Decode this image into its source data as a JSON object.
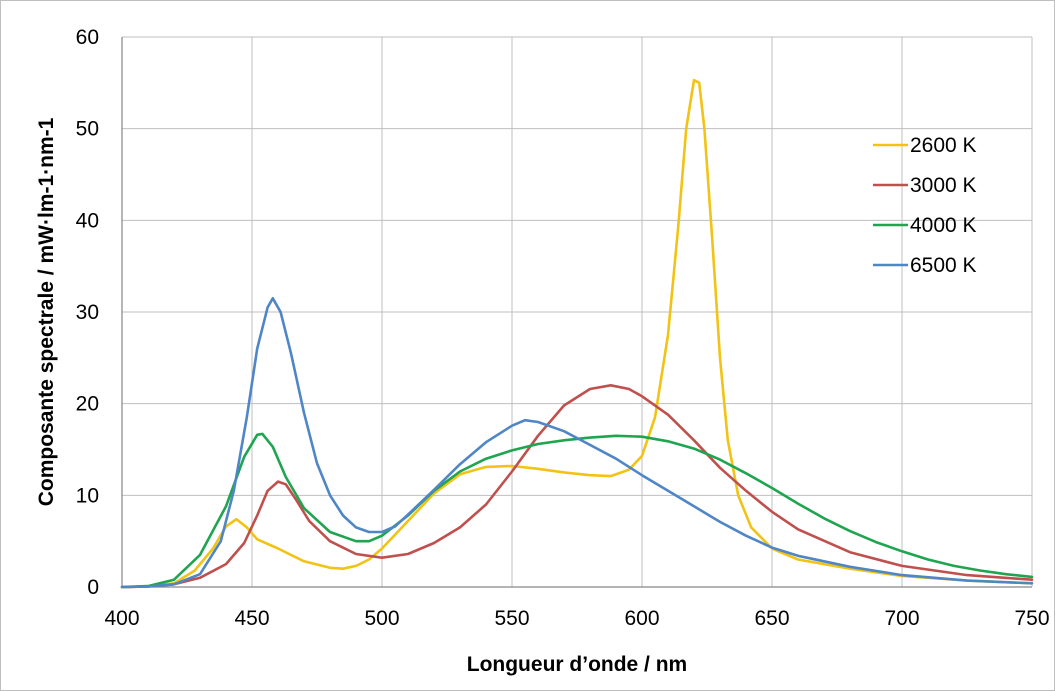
{
  "chart_data": {
    "type": "line",
    "title": "",
    "xlabel": "Longueur d’onde  / nm",
    "ylabel": "Composante spectrale / mW·lm-1·nm-1",
    "xlim": [
      400,
      750
    ],
    "ylim": [
      0,
      60
    ],
    "x_ticks": [
      "400",
      "450",
      "500",
      "550",
      "600",
      "650",
      "700",
      "750"
    ],
    "y_ticks": [
      "0",
      "10",
      "20",
      "30",
      "40",
      "50",
      "60"
    ],
    "grid": true,
    "legend_position": "right",
    "series": [
      {
        "name": "2600 K",
        "color": "#f2c314",
        "points": [
          [
            400,
            0
          ],
          [
            410,
            0.05
          ],
          [
            420,
            0.4
          ],
          [
            428,
            1.8
          ],
          [
            435,
            4.2
          ],
          [
            440,
            6.6
          ],
          [
            444,
            7.4
          ],
          [
            448,
            6.5
          ],
          [
            452,
            5.2
          ],
          [
            460,
            4.2
          ],
          [
            470,
            2.8
          ],
          [
            480,
            2.1
          ],
          [
            485,
            2.0
          ],
          [
            490,
            2.3
          ],
          [
            495,
            3.0
          ],
          [
            500,
            4.2
          ],
          [
            510,
            7.2
          ],
          [
            520,
            10.2
          ],
          [
            530,
            12.3
          ],
          [
            540,
            13.1
          ],
          [
            550,
            13.2
          ],
          [
            560,
            12.9
          ],
          [
            570,
            12.5
          ],
          [
            580,
            12.2
          ],
          [
            588,
            12.1
          ],
          [
            595,
            12.8
          ],
          [
            600,
            14.3
          ],
          [
            605,
            18.5
          ],
          [
            610,
            27.5
          ],
          [
            614,
            39.5
          ],
          [
            617,
            50.0
          ],
          [
            620,
            55.3
          ],
          [
            622,
            55.0
          ],
          [
            624,
            50.0
          ],
          [
            627,
            38.0
          ],
          [
            630,
            25.0
          ],
          [
            633,
            16.0
          ],
          [
            637,
            10.0
          ],
          [
            642,
            6.5
          ],
          [
            650,
            4.2
          ],
          [
            660,
            3.0
          ],
          [
            680,
            2.0
          ],
          [
            700,
            1.2
          ],
          [
            725,
            0.7
          ],
          [
            750,
            0.4
          ]
        ]
      },
      {
        "name": "3000 K",
        "color": "#c0504d",
        "points": [
          [
            400,
            0
          ],
          [
            410,
            0.05
          ],
          [
            420,
            0.3
          ],
          [
            430,
            1.0
          ],
          [
            440,
            2.5
          ],
          [
            447,
            4.8
          ],
          [
            452,
            7.8
          ],
          [
            456,
            10.5
          ],
          [
            460,
            11.5
          ],
          [
            463,
            11.2
          ],
          [
            467,
            9.5
          ],
          [
            472,
            7.2
          ],
          [
            480,
            5.0
          ],
          [
            490,
            3.6
          ],
          [
            500,
            3.2
          ],
          [
            510,
            3.6
          ],
          [
            520,
            4.8
          ],
          [
            530,
            6.5
          ],
          [
            540,
            9.0
          ],
          [
            550,
            12.6
          ],
          [
            560,
            16.5
          ],
          [
            570,
            19.8
          ],
          [
            580,
            21.6
          ],
          [
            588,
            22.0
          ],
          [
            595,
            21.6
          ],
          [
            600,
            20.8
          ],
          [
            610,
            18.8
          ],
          [
            620,
            16.0
          ],
          [
            630,
            13.0
          ],
          [
            640,
            10.5
          ],
          [
            650,
            8.2
          ],
          [
            660,
            6.3
          ],
          [
            680,
            3.8
          ],
          [
            700,
            2.3
          ],
          [
            725,
            1.3
          ],
          [
            750,
            0.8
          ]
        ]
      },
      {
        "name": "4000 K",
        "color": "#1fa550",
        "points": [
          [
            400,
            0
          ],
          [
            410,
            0.1
          ],
          [
            420,
            0.8
          ],
          [
            430,
            3.5
          ],
          [
            440,
            8.8
          ],
          [
            447,
            14.2
          ],
          [
            452,
            16.6
          ],
          [
            454,
            16.7
          ],
          [
            458,
            15.3
          ],
          [
            463,
            12.0
          ],
          [
            470,
            8.6
          ],
          [
            480,
            6.0
          ],
          [
            490,
            5.0
          ],
          [
            495,
            5.0
          ],
          [
            500,
            5.6
          ],
          [
            510,
            7.8
          ],
          [
            520,
            10.5
          ],
          [
            530,
            12.6
          ],
          [
            540,
            14.0
          ],
          [
            550,
            14.9
          ],
          [
            560,
            15.6
          ],
          [
            570,
            16.0
          ],
          [
            580,
            16.3
          ],
          [
            590,
            16.5
          ],
          [
            600,
            16.4
          ],
          [
            610,
            15.9
          ],
          [
            620,
            15.1
          ],
          [
            630,
            13.9
          ],
          [
            640,
            12.4
          ],
          [
            650,
            10.8
          ],
          [
            660,
            9.1
          ],
          [
            670,
            7.5
          ],
          [
            680,
            6.1
          ],
          [
            690,
            4.9
          ],
          [
            700,
            3.9
          ],
          [
            710,
            3.0
          ],
          [
            720,
            2.3
          ],
          [
            730,
            1.8
          ],
          [
            740,
            1.4
          ],
          [
            750,
            1.1
          ]
        ]
      },
      {
        "name": "6500 K",
        "color": "#4f86c6",
        "points": [
          [
            400,
            0
          ],
          [
            410,
            0.05
          ],
          [
            420,
            0.3
          ],
          [
            430,
            1.4
          ],
          [
            438,
            5.0
          ],
          [
            443,
            10.5
          ],
          [
            448,
            18.5
          ],
          [
            452,
            26.0
          ],
          [
            456,
            30.5
          ],
          [
            458,
            31.5
          ],
          [
            461,
            30.0
          ],
          [
            465,
            25.5
          ],
          [
            470,
            19.0
          ],
          [
            475,
            13.5
          ],
          [
            480,
            10.0
          ],
          [
            485,
            7.8
          ],
          [
            490,
            6.5
          ],
          [
            495,
            6.0
          ],
          [
            500,
            6.0
          ],
          [
            505,
            6.6
          ],
          [
            510,
            7.9
          ],
          [
            520,
            10.6
          ],
          [
            530,
            13.4
          ],
          [
            540,
            15.8
          ],
          [
            550,
            17.6
          ],
          [
            555,
            18.2
          ],
          [
            560,
            18.0
          ],
          [
            570,
            17.0
          ],
          [
            580,
            15.5
          ],
          [
            590,
            14.0
          ],
          [
            600,
            12.2
          ],
          [
            610,
            10.5
          ],
          [
            620,
            8.8
          ],
          [
            630,
            7.1
          ],
          [
            640,
            5.6
          ],
          [
            650,
            4.3
          ],
          [
            660,
            3.4
          ],
          [
            680,
            2.2
          ],
          [
            700,
            1.3
          ],
          [
            725,
            0.7
          ],
          [
            750,
            0.4
          ]
        ]
      }
    ]
  }
}
